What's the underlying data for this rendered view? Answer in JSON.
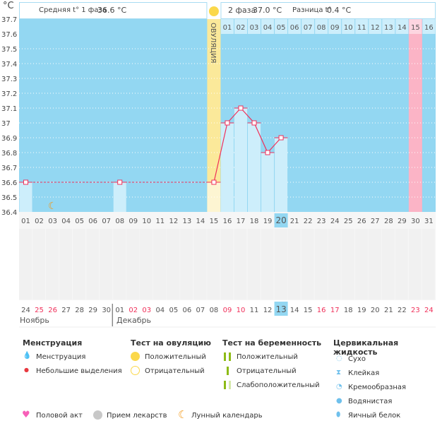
{
  "header": {
    "phase1_label": "Средняя t° 1 фаза",
    "phase1_value": "36.6 °C",
    "phase2_label": "2 фаза",
    "phase2_value": "37.0 °C",
    "diff_label": "Разница t°",
    "diff_value": "0.4 °C",
    "ovulation_label": "ОВУЛЯЦИЯ",
    "unit": "°C"
  },
  "colors": {
    "background": "#93d7f2",
    "bar": "#cdeefb",
    "ovulation": "#fbe99a",
    "period": "#fbb4c6",
    "line": "#f0305a",
    "today": "#93d7f2",
    "weekend": "#f0305a"
  },
  "chart_data": {
    "type": "line",
    "ylabel": "°C",
    "ylim": [
      36.4,
      37.7
    ],
    "yticks": [
      "37.7",
      "37.6",
      "37.5",
      "37.4",
      "37.3",
      "37.2",
      "37.1",
      "37",
      "36.9",
      "36.8",
      "36.7",
      "36.6",
      "36.5",
      "36.4"
    ],
    "cycle_days": [
      "01",
      "02",
      "03",
      "04",
      "05",
      "06",
      "07",
      "08",
      "09",
      "10",
      "11",
      "12",
      "13",
      "14",
      "15",
      "16",
      "17",
      "18",
      "19",
      "20",
      "21",
      "22",
      "23",
      "24",
      "25",
      "26",
      "27",
      "28",
      "29",
      "30",
      "31"
    ],
    "series": [
      {
        "points": [
          {
            "day": 1,
            "value": 36.6
          },
          {
            "day": 8,
            "value": 36.6
          },
          {
            "day": 15,
            "value": 36.6
          },
          {
            "day": 16,
            "value": 37.0
          },
          {
            "day": 17,
            "value": 37.1
          },
          {
            "day": 18,
            "value": 37.0
          },
          {
            "day": 19,
            "value": 36.8
          },
          {
            "day": 20,
            "value": 36.9
          }
        ]
      }
    ],
    "ovulation_day": 15,
    "today_day": 20,
    "period_day": 30,
    "luteal_days": [
      "01",
      "02",
      "03",
      "04",
      "05",
      "06",
      "07",
      "08",
      "09",
      "10",
      "11",
      "12",
      "13",
      "14",
      "15",
      "16"
    ],
    "dates": [
      "24",
      "25",
      "26",
      "27",
      "28",
      "29",
      "30",
      "01",
      "02",
      "03",
      "04",
      "05",
      "06",
      "07",
      "08",
      "09",
      "10",
      "11",
      "12",
      "13",
      "14",
      "15",
      "16",
      "17",
      "18",
      "19",
      "20",
      "21",
      "22",
      "23",
      "24"
    ],
    "weekend_dates": [
      2,
      3,
      9,
      10,
      16,
      17,
      23,
      24,
      30,
      31
    ],
    "months": [
      "Ноябрь",
      "Декабрь"
    ]
  },
  "legend": {
    "menstruation": {
      "title": "Менструация",
      "items": [
        "Менструация",
        "Небольшие выделения"
      ]
    },
    "ovulation_test": {
      "title": "Тест на овуляцию",
      "items": [
        "Положительный",
        "Отрицательный"
      ]
    },
    "pregnancy_test": {
      "title": "Тест на беременность",
      "items": [
        "Положительный",
        "Отрицательный",
        "Слабоположительный"
      ]
    },
    "cervical": {
      "title": "Цервикальная жидкость",
      "items": [
        "Сухо",
        "Клейкая",
        "Кремообразная",
        "Водянистая",
        "Яичный белок"
      ]
    },
    "other": [
      "Половой акт",
      "Прием лекарств",
      "Лунный календарь"
    ]
  }
}
